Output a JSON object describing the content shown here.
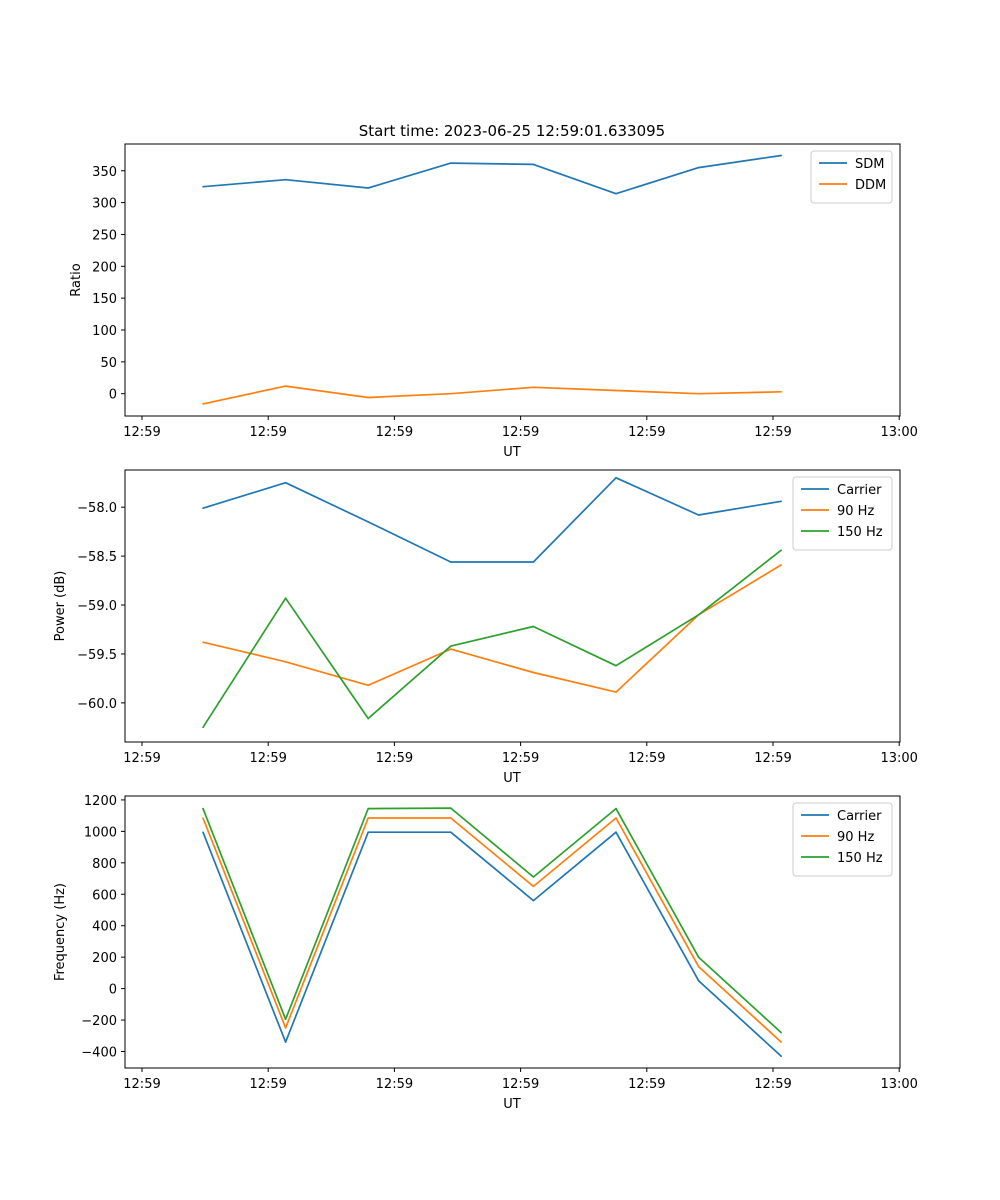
{
  "figure_title": "Start time: 2023-06-25 12:59:01.633095",
  "colors": {
    "blue": "#1f77b4",
    "orange": "#ff7f0e",
    "green": "#2ca02c"
  },
  "chart_data": [
    {
      "type": "line",
      "title": "Start time: 2023-06-25 12:59:01.633095",
      "xlabel": "UT",
      "ylabel": "Ratio",
      "xtick_labels": [
        "12:59",
        "12:59",
        "12:59",
        "12:59",
        "12:59",
        "12:59",
        "13:00"
      ],
      "ylim": [
        -35,
        392
      ],
      "yticks": [
        0,
        50,
        100,
        150,
        200,
        250,
        300,
        350
      ],
      "grid": false,
      "legend_position": "top-right",
      "series": [
        {
          "name": "SDM",
          "color": "#1f77b4",
          "values": [
            325,
            336,
            323,
            362,
            360,
            314,
            355,
            374
          ]
        },
        {
          "name": "DDM",
          "color": "#ff7f0e",
          "values": [
            -16,
            12,
            -6,
            0,
            10,
            5,
            0,
            3
          ]
        }
      ]
    },
    {
      "type": "line",
      "title": "",
      "xlabel": "UT",
      "ylabel": "Power (dB)",
      "xtick_labels": [
        "12:59",
        "12:59",
        "12:59",
        "12:59",
        "12:59",
        "12:59",
        "13:00"
      ],
      "ylim": [
        -60.4,
        -57.62
      ],
      "yticks": [
        -60.0,
        -59.5,
        -59.0,
        -58.5,
        -58.0
      ],
      "ytick_labels": [
        "−60.0",
        "−59.5",
        "−59.0",
        "−58.5",
        "−58.0"
      ],
      "grid": false,
      "legend_position": "top-right",
      "series": [
        {
          "name": "Carrier",
          "color": "#1f77b4",
          "values": [
            -58.01,
            -57.75,
            -58.15,
            -58.56,
            -58.56,
            -57.7,
            -58.08,
            -57.94
          ]
        },
        {
          "name": "90 Hz",
          "color": "#ff7f0e",
          "values": [
            -59.38,
            -59.58,
            -59.82,
            -59.45,
            -59.69,
            -59.89,
            -59.1,
            -58.59
          ]
        },
        {
          "name": "150 Hz",
          "color": "#2ca02c",
          "values": [
            -60.25,
            -58.93,
            -60.16,
            -59.42,
            -59.22,
            -59.62,
            -59.1,
            -58.44
          ]
        }
      ]
    },
    {
      "type": "line",
      "title": "",
      "xlabel": "UT",
      "ylabel": "Frequency (Hz)",
      "xtick_labels": [
        "12:59",
        "12:59",
        "12:59",
        "12:59",
        "12:59",
        "12:59",
        "13:00"
      ],
      "ylim": [
        -505,
        1225
      ],
      "yticks": [
        -400,
        -200,
        0,
        200,
        400,
        600,
        800,
        1000,
        1200
      ],
      "ytick_labels": [
        "−400",
        "−200",
        "0",
        "200",
        "400",
        "600",
        "800",
        "1000",
        "1200"
      ],
      "grid": false,
      "legend_position": "top-right",
      "series": [
        {
          "name": "Carrier",
          "color": "#1f77b4",
          "values": [
            995,
            -340,
            995,
            995,
            560,
            995,
            50,
            -430
          ]
        },
        {
          "name": "90 Hz",
          "color": "#ff7f0e",
          "values": [
            1085,
            -250,
            1085,
            1085,
            650,
            1085,
            140,
            -340
          ]
        },
        {
          "name": "150 Hz",
          "color": "#2ca02c",
          "values": [
            1145,
            -195,
            1145,
            1148,
            710,
            1145,
            200,
            -280
          ]
        }
      ]
    }
  ]
}
